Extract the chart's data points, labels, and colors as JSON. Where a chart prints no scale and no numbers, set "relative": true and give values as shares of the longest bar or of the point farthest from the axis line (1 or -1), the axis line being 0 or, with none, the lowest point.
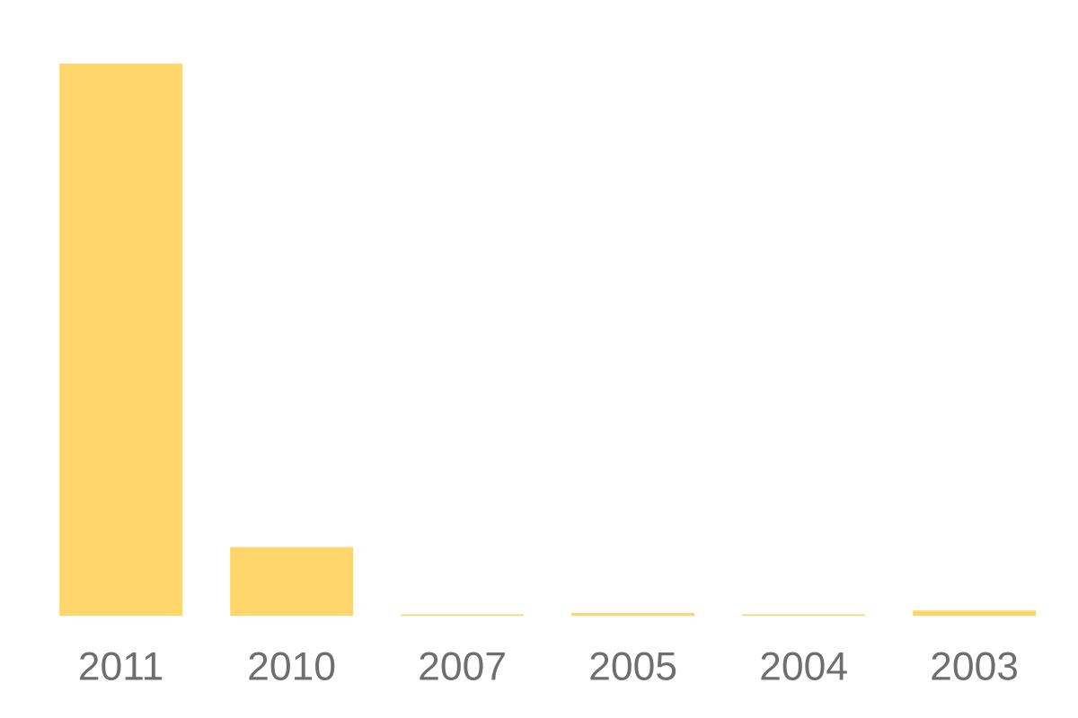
{
  "chart_data": {
    "type": "bar",
    "relative": true,
    "categories": [
      "2011",
      "2010",
      "2007",
      "2005",
      "2004",
      "2003"
    ],
    "values": [
      1,
      0.125,
      0.003,
      0.006,
      0.003,
      0.01
    ],
    "color": "#ffd66b",
    "grid": false,
    "legend": false
  }
}
